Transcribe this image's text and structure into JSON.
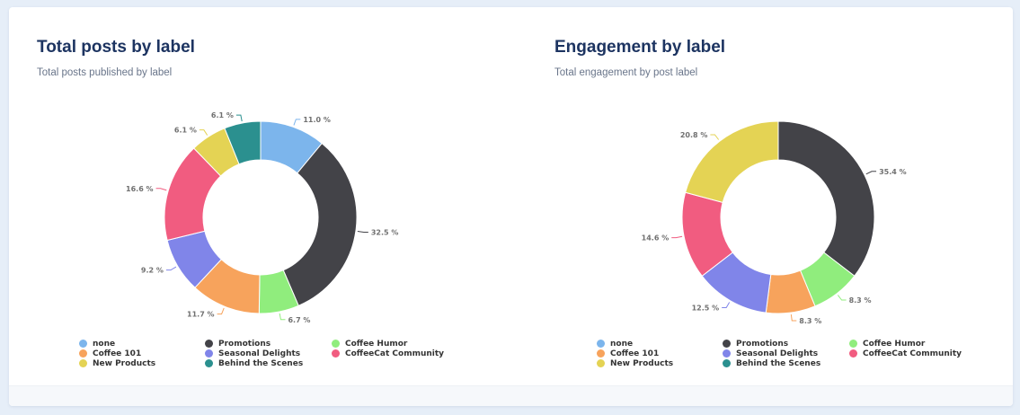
{
  "charts": [
    {
      "title": "Total posts by label",
      "subtitle": "Total posts published by label"
    },
    {
      "title": "Engagement by label",
      "subtitle": "Total engagement by post label"
    }
  ],
  "legend": [
    {
      "label": "none",
      "color": "#7cb5ec"
    },
    {
      "label": "Promotions",
      "color": "#434348"
    },
    {
      "label": "Coffee Humor",
      "color": "#90ed7d"
    },
    {
      "label": "Coffee 101",
      "color": "#f7a35c"
    },
    {
      "label": "Seasonal Delights",
      "color": "#8085e9"
    },
    {
      "label": "CoffeeCat Community",
      "color": "#f15c80"
    },
    {
      "label": "New Products",
      "color": "#e4d354"
    },
    {
      "label": "Behind the Scenes",
      "color": "#2b908f"
    }
  ],
  "chart_data": [
    {
      "type": "pie",
      "variant": "donut",
      "title": "Total posts by label",
      "subtitle": "Total posts published by label",
      "legend_position": "bottom",
      "slices": [
        {
          "label": "none",
          "value": 11.0,
          "display": "11.0 %",
          "color": "#7cb5ec"
        },
        {
          "label": "Promotions",
          "value": 32.5,
          "display": "32.5 %",
          "color": "#434348"
        },
        {
          "label": "Coffee Humor",
          "value": 6.7,
          "display": "6.7 %",
          "color": "#90ed7d"
        },
        {
          "label": "Coffee 101",
          "value": 11.7,
          "display": "11.7 %",
          "color": "#f7a35c"
        },
        {
          "label": "Seasonal Delights",
          "value": 9.2,
          "display": "9.2 %",
          "color": "#8085e9"
        },
        {
          "label": "CoffeeCat Community",
          "value": 16.6,
          "display": "16.6 %",
          "color": "#f15c80"
        },
        {
          "label": "New Products",
          "value": 6.1,
          "display": "6.1 %",
          "color": "#e4d354"
        },
        {
          "label": "Behind the Scenes",
          "value": 6.1,
          "display": "6.1 %",
          "color": "#2b908f"
        }
      ]
    },
    {
      "type": "pie",
      "variant": "donut",
      "title": "Engagement by label",
      "subtitle": "Total engagement by post label",
      "legend_position": "bottom",
      "slices": [
        {
          "label": "none",
          "value": 0,
          "display": "",
          "color": "#7cb5ec"
        },
        {
          "label": "Promotions",
          "value": 35.4,
          "display": "35.4 %",
          "color": "#434348"
        },
        {
          "label": "Coffee Humor",
          "value": 8.3,
          "display": "8.3 %",
          "color": "#90ed7d"
        },
        {
          "label": "Coffee 101",
          "value": 8.3,
          "display": "8.3 %",
          "color": "#f7a35c"
        },
        {
          "label": "Seasonal Delights",
          "value": 12.5,
          "display": "12.5 %",
          "color": "#8085e9"
        },
        {
          "label": "CoffeeCat Community",
          "value": 14.6,
          "display": "14.6 %",
          "color": "#f15c80"
        },
        {
          "label": "New Products",
          "value": 20.8,
          "display": "20.8 %",
          "color": "#e4d354"
        },
        {
          "label": "Behind the Scenes",
          "value": 0,
          "display": "",
          "color": "#2b908f"
        }
      ]
    }
  ]
}
